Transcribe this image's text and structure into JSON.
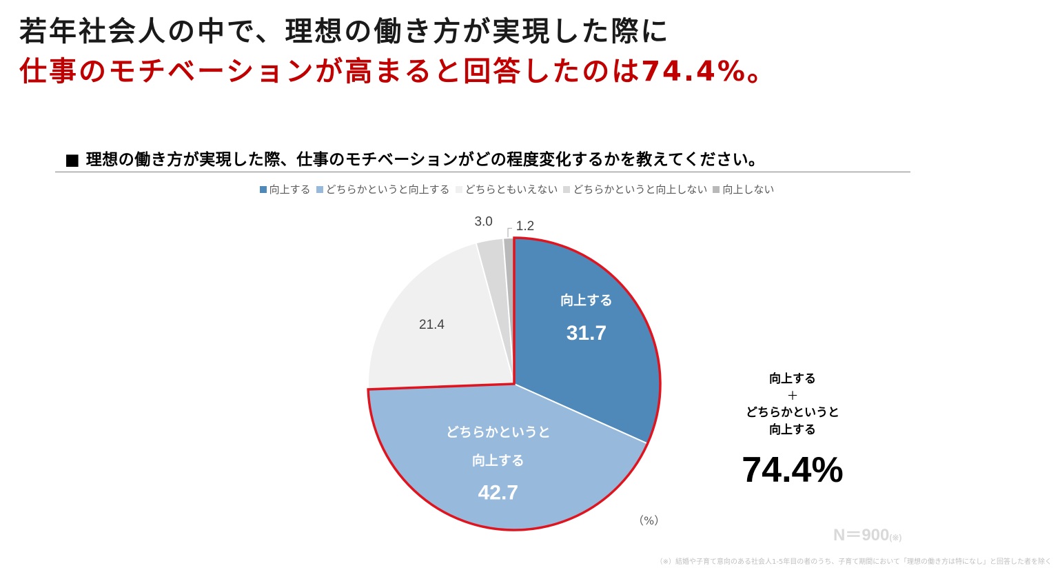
{
  "headline": {
    "line1": "若年社会人の中で、理想の働き方が実現した際に",
    "line2": "仕事のモチベーションが高まると回答したのは74.4%。"
  },
  "question": "■ 理想の働き方が実現した際、仕事のモチベーションがどの程度変化するかを教えてください。",
  "chart_data": {
    "type": "pie",
    "title": "",
    "start_angle_deg": 0,
    "direction": "clockwise",
    "categories": [
      "向上する",
      "どちらかというと向上する",
      "どちらともいえない",
      "どちらかというと向上しない",
      "向上しない"
    ],
    "values": [
      31.7,
      42.7,
      21.4,
      3.0,
      1.2
    ],
    "value_labels": [
      "31.7",
      "42.7",
      "21.4",
      "3.0",
      "1.2"
    ],
    "colors": [
      "#4e89ba",
      "#97b9dc",
      "#f0f0f0",
      "#d9d9d9",
      "#b9b9b9"
    ],
    "highlight": {
      "slices": [
        "向上する",
        "どちらかというと向上する"
      ],
      "outline_color": "#e0141e"
    },
    "inside_labels": {
      "向上する": "向上する",
      "どちらかというと向上する_line1": "どちらかというと",
      "どちらかというと向上する_line2": "向上する"
    },
    "unit": "（%）",
    "legend_position": "top"
  },
  "total": {
    "caption_line1": "向上する",
    "caption_plus": "＋",
    "caption_line2": "どちらかというと",
    "caption_line3": "向上する",
    "value": "74.4%"
  },
  "sample": {
    "label": "N＝900",
    "mark": "(※)"
  },
  "footnote": "（※）結婚や子育て意向のある社会人1-5年目の者のうち、子育て期間において「理想の働き方は特になし」と回答した者を除く"
}
